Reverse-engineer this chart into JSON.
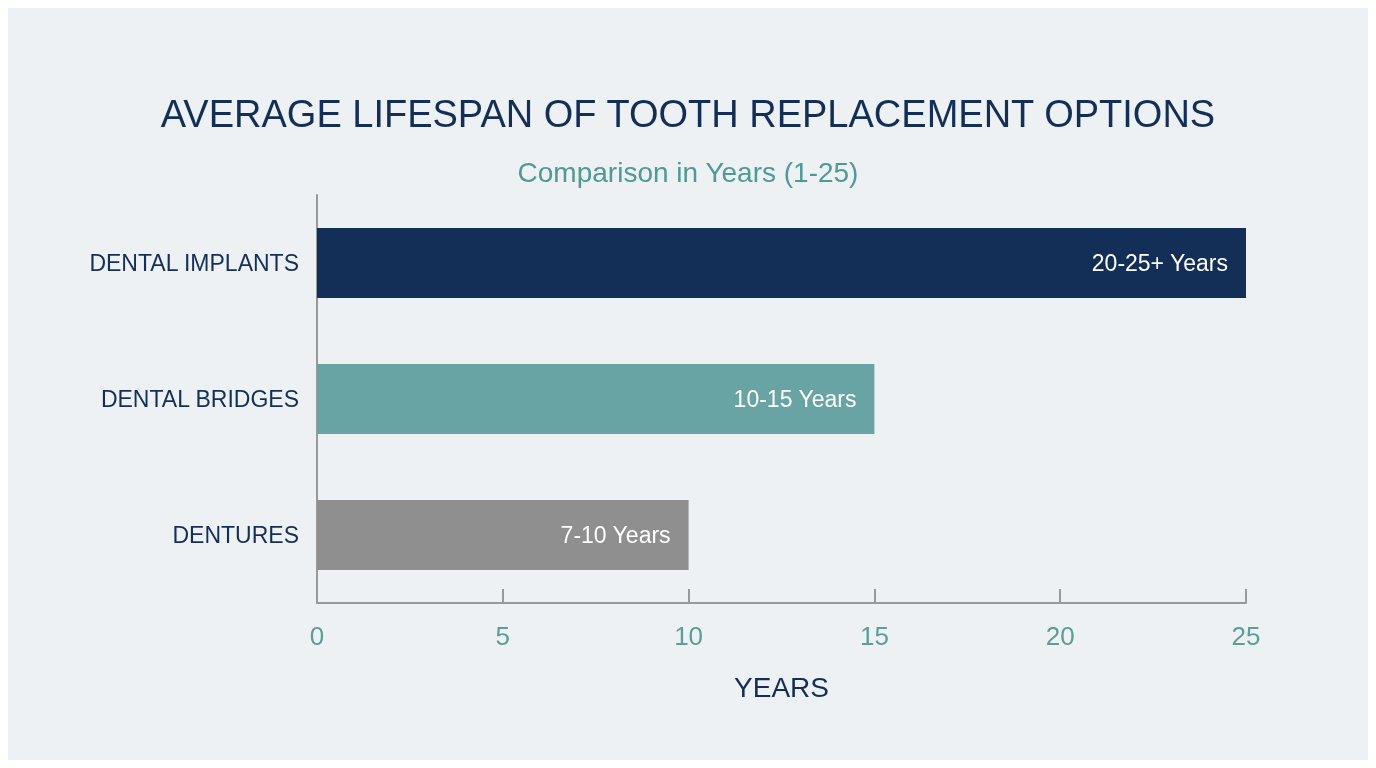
{
  "chart_data": {
    "type": "bar",
    "orientation": "horizontal",
    "title": "AVERAGE LIFESPAN OF TOOTH REPLACEMENT OPTIONS",
    "subtitle": "Comparison in Years (1-25)",
    "xlabel": "YEARS",
    "categories": [
      "DENTAL IMPLANTS",
      "DENTAL BRIDGES",
      "DENTURES"
    ],
    "values": [
      25,
      15,
      10
    ],
    "colors": [
      "#132f57",
      "#68a4a4",
      "#8f8f8f"
    ],
    "value_labels": [
      "20-25+ Years",
      "10-15 Years",
      "7-10 Years"
    ],
    "xlim": [
      0,
      25
    ],
    "xticks": [
      0,
      5,
      10,
      15,
      20,
      25
    ],
    "grid": false
  }
}
